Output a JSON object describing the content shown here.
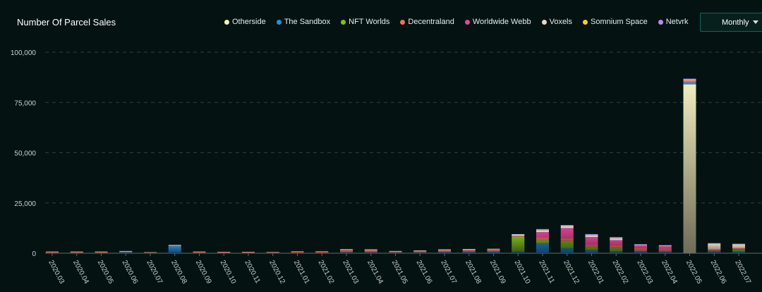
{
  "header": {
    "title": "Number Of Parcel Sales",
    "period_label": "Monthly"
  },
  "legend": [
    {
      "name": "Otherside",
      "color": "#f3f0c2"
    },
    {
      "name": "The Sandbox",
      "color": "#2a8fd8"
    },
    {
      "name": "NFT Worlds",
      "color": "#7fbf22"
    },
    {
      "name": "Decentraland",
      "color": "#f07060"
    },
    {
      "name": "Worldwide Webb",
      "color": "#e0479a"
    },
    {
      "name": "Voxels",
      "color": "#ead8c4"
    },
    {
      "name": "Somnium Space",
      "color": "#f3cf33"
    },
    {
      "name": "Netvrk",
      "color": "#b38ef0"
    }
  ],
  "chart_data": {
    "type": "bar",
    "stacked": true,
    "title": "Number Of Parcel Sales",
    "xlabel": "",
    "ylabel": "",
    "ylim": [
      0,
      100000
    ],
    "yticks": [
      0,
      25000,
      50000,
      75000,
      100000
    ],
    "ytick_labels": [
      "0",
      "25,000",
      "50,000",
      "75,000",
      "100,000"
    ],
    "grid": true,
    "legend_position": "top",
    "categories": [
      "2020.03",
      "2020.04",
      "2020.05",
      "2020.06",
      "2020.07",
      "2020.08",
      "2020.09",
      "2020.10",
      "2020.11",
      "2020.12",
      "2021.01",
      "2021.02",
      "2021.03",
      "2021.04",
      "2021.05",
      "2021.06",
      "2021.07",
      "2021.08",
      "2021.09",
      "2021.10",
      "2021.11",
      "2021.12",
      "2022.01",
      "2022.02",
      "2022.03",
      "2022.04",
      "2022.05",
      "2022.06",
      "2022.07"
    ],
    "series": [
      {
        "name": "Otherside",
        "color": "#f3f0c2",
        "values": [
          0,
          0,
          0,
          0,
          0,
          0,
          0,
          0,
          0,
          0,
          0,
          0,
          0,
          0,
          0,
          0,
          0,
          0,
          0,
          0,
          0,
          0,
          0,
          0,
          0,
          0,
          84000,
          0,
          0
        ]
      },
      {
        "name": "The Sandbox",
        "color": "#2a8fd8",
        "values": [
          0,
          0,
          0,
          500,
          0,
          3500,
          0,
          0,
          0,
          0,
          0,
          0,
          500,
          400,
          300,
          400,
          600,
          800,
          900,
          800,
          5000,
          2500,
          1500,
          1000,
          1000,
          800,
          1000,
          800,
          800
        ]
      },
      {
        "name": "NFT Worlds",
        "color": "#7fbf22",
        "values": [
          0,
          0,
          0,
          0,
          0,
          0,
          0,
          0,
          0,
          0,
          0,
          0,
          0,
          0,
          0,
          0,
          0,
          0,
          0,
          7500,
          1500,
          3500,
          1500,
          1500,
          0,
          0,
          0,
          0,
          1200
        ]
      },
      {
        "name": "Decentraland",
        "color": "#f07060",
        "values": [
          500,
          500,
          500,
          300,
          300,
          300,
          500,
          500,
          500,
          400,
          700,
          700,
          1200,
          1200,
          600,
          800,
          1000,
          1000,
          1100,
          400,
          1500,
          1500,
          1500,
          1500,
          1500,
          1500,
          1000,
          1000,
          500
        ]
      },
      {
        "name": "Worldwide Webb",
        "color": "#e0479a",
        "values": [
          0,
          0,
          0,
          0,
          0,
          0,
          0,
          0,
          0,
          0,
          0,
          0,
          0,
          0,
          0,
          0,
          0,
          0,
          0,
          0,
          2500,
          5000,
          3500,
          2500,
          1500,
          1200,
          0,
          0,
          0
        ]
      },
      {
        "name": "Voxels",
        "color": "#ead8c4",
        "values": [
          300,
          300,
          300,
          300,
          200,
          300,
          300,
          200,
          200,
          200,
          200,
          200,
          300,
          300,
          200,
          200,
          300,
          300,
          200,
          600,
          1000,
          1000,
          1000,
          1000,
          300,
          300,
          300,
          3000,
          2000
        ]
      },
      {
        "name": "Somnium Space",
        "color": "#f3cf33",
        "values": [
          0,
          0,
          0,
          0,
          0,
          0,
          0,
          0,
          0,
          0,
          0,
          0,
          0,
          0,
          0,
          0,
          0,
          0,
          0,
          0,
          0,
          0,
          0,
          0,
          0,
          0,
          0,
          0,
          0
        ]
      },
      {
        "name": "Netvrk",
        "color": "#b38ef0",
        "values": [
          0,
          0,
          0,
          0,
          0,
          0,
          0,
          0,
          0,
          0,
          0,
          0,
          0,
          0,
          0,
          0,
          0,
          0,
          0,
          200,
          500,
          500,
          500,
          500,
          200,
          200,
          500,
          200,
          200
        ]
      }
    ]
  }
}
